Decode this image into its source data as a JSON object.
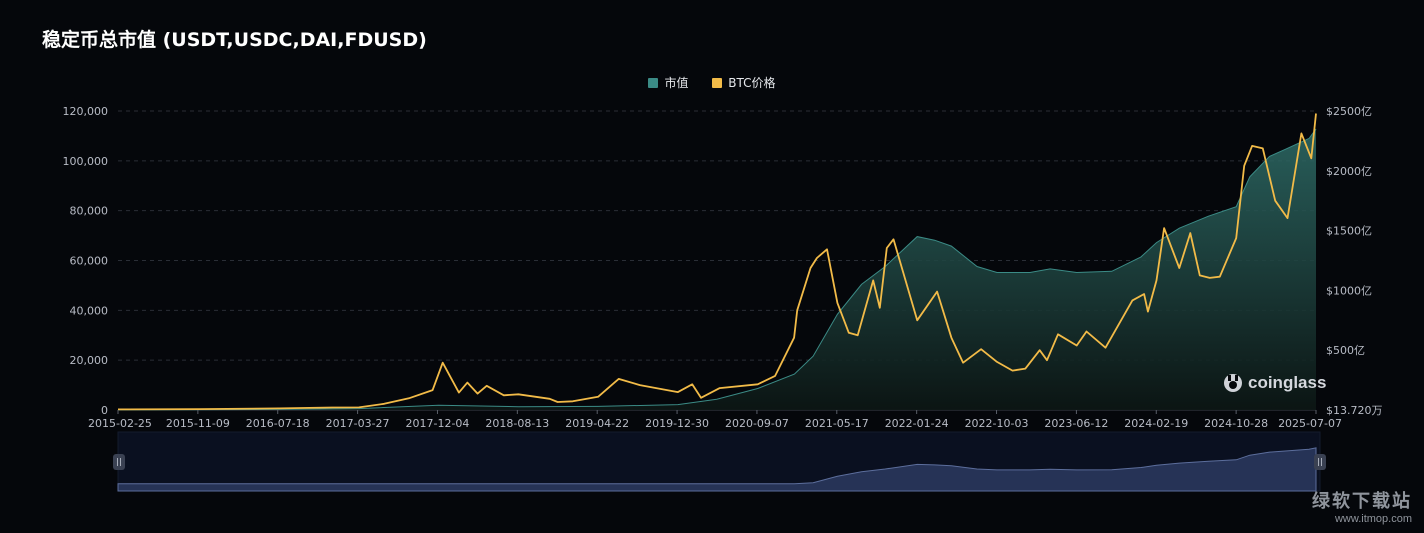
{
  "title": "稳定币总市值 (USDT,USDC,DAI,FDUSD)",
  "legend": [
    {
      "label": "市值",
      "color": "#3b8b86"
    },
    {
      "label": "BTC价格",
      "color": "#f2bb48"
    }
  ],
  "watermark": {
    "logo": "coinglass",
    "site_name": "绿软下载站",
    "site_url": "www.itmop.com"
  },
  "chart_data": {
    "type": "area",
    "x_ticks": [
      "2015-02-25",
      "2015-11-09",
      "2016-07-18",
      "2017-03-27",
      "2017-12-04",
      "2018-08-13",
      "2019-04-22",
      "2019-12-30",
      "2020-09-07",
      "2021-05-17",
      "2022-01-24",
      "2022-10-03",
      "2023-06-12",
      "2024-02-19",
      "2024-10-28",
      "2025-07-07"
    ],
    "left_axis": {
      "ticks": [
        "0",
        "20,000",
        "40,000",
        "60,000",
        "80,000",
        "100,000",
        "120,000"
      ],
      "range": [
        0,
        120000
      ]
    },
    "right_axis": {
      "ticks": [
        "$13.720万",
        "$500亿",
        "$1000亿",
        "$1500亿",
        "$2000亿",
        "$2500亿"
      ],
      "range_yi": [
        0,
        2500
      ]
    },
    "grid": true,
    "legend_position": "top-center",
    "series": [
      {
        "name": "市值",
        "axis": "right",
        "unit": "亿美元",
        "color": "#3b8b86",
        "points": [
          [
            "2015-02-25",
            1
          ],
          [
            "2016-07-18",
            5
          ],
          [
            "2017-03-27",
            12
          ],
          [
            "2017-12-04",
            40
          ],
          [
            "2018-08-13",
            28
          ],
          [
            "2019-04-22",
            30
          ],
          [
            "2019-12-30",
            45
          ],
          [
            "2020-05-01",
            90
          ],
          [
            "2020-09-07",
            180
          ],
          [
            "2021-01-01",
            300
          ],
          [
            "2021-03-01",
            450
          ],
          [
            "2021-05-17",
            800
          ],
          [
            "2021-08-01",
            1050
          ],
          [
            "2021-10-15",
            1200
          ],
          [
            "2022-01-24",
            1450
          ],
          [
            "2022-03-20",
            1420
          ],
          [
            "2022-05-12",
            1370
          ],
          [
            "2022-08-01",
            1200
          ],
          [
            "2022-10-03",
            1150
          ],
          [
            "2023-01-15",
            1150
          ],
          [
            "2023-03-20",
            1180
          ],
          [
            "2023-06-12",
            1150
          ],
          [
            "2023-10-01",
            1160
          ],
          [
            "2024-01-01",
            1280
          ],
          [
            "2024-02-19",
            1400
          ],
          [
            "2024-05-01",
            1520
          ],
          [
            "2024-08-01",
            1620
          ],
          [
            "2024-10-28",
            1700
          ],
          [
            "2024-12-10",
            1950
          ],
          [
            "2025-02-10",
            2120
          ],
          [
            "2025-04-01",
            2180
          ],
          [
            "2025-06-15",
            2270
          ],
          [
            "2025-07-07",
            2350
          ]
        ]
      },
      {
        "name": "BTC价格",
        "axis": "left",
        "unit": "USD",
        "color": "#f2bb48",
        "points": [
          [
            "2015-02-25",
            250
          ],
          [
            "2015-11-09",
            380
          ],
          [
            "2016-07-18",
            660
          ],
          [
            "2017-01-01",
            1000
          ],
          [
            "2017-03-27",
            1050
          ],
          [
            "2017-06-15",
            2500
          ],
          [
            "2017-09-01",
            4700
          ],
          [
            "2017-11-15",
            8000
          ],
          [
            "2017-12-17",
            19000
          ],
          [
            "2018-02-06",
            7000
          ],
          [
            "2018-03-05",
            11000
          ],
          [
            "2018-04-06",
            6600
          ],
          [
            "2018-05-05",
            9700
          ],
          [
            "2018-06-28",
            5900
          ],
          [
            "2018-08-13",
            6300
          ],
          [
            "2018-11-20",
            4500
          ],
          [
            "2018-12-15",
            3200
          ],
          [
            "2019-02-01",
            3500
          ],
          [
            "2019-04-22",
            5300
          ],
          [
            "2019-06-26",
            12500
          ],
          [
            "2019-09-01",
            10000
          ],
          [
            "2019-12-30",
            7200
          ],
          [
            "2020-02-13",
            10300
          ],
          [
            "2020-03-12",
            4900
          ],
          [
            "2020-05-10",
            8800
          ],
          [
            "2020-09-07",
            10300
          ],
          [
            "2020-11-01",
            13700
          ],
          [
            "2020-12-31",
            29000
          ],
          [
            "2021-01-10",
            40000
          ],
          [
            "2021-02-21",
            57000
          ],
          [
            "2021-03-13",
            61000
          ],
          [
            "2021-04-14",
            64500
          ],
          [
            "2021-05-17",
            43000
          ],
          [
            "2021-06-22",
            31000
          ],
          [
            "2021-07-20",
            30000
          ],
          [
            "2021-09-07",
            52000
          ],
          [
            "2021-09-28",
            41000
          ],
          [
            "2021-10-20",
            65000
          ],
          [
            "2021-11-10",
            68500
          ],
          [
            "2022-01-24",
            36000
          ],
          [
            "2022-03-28",
            47500
          ],
          [
            "2022-05-12",
            29000
          ],
          [
            "2022-06-18",
            19000
          ],
          [
            "2022-08-14",
            24400
          ],
          [
            "2022-10-03",
            19300
          ],
          [
            "2022-11-21",
            15800
          ],
          [
            "2023-01-01",
            16600
          ],
          [
            "2023-02-15",
            24000
          ],
          [
            "2023-03-10",
            20000
          ],
          [
            "2023-04-14",
            30400
          ],
          [
            "2023-06-12",
            25900
          ],
          [
            "2023-07-13",
            31500
          ],
          [
            "2023-09-11",
            25000
          ],
          [
            "2023-12-05",
            44000
          ],
          [
            "2024-01-11",
            46500
          ],
          [
            "2024-01-23",
            39500
          ],
          [
            "2024-02-19",
            52000
          ],
          [
            "2024-03-14",
            73000
          ],
          [
            "2024-05-01",
            57000
          ],
          [
            "2024-06-05",
            71000
          ],
          [
            "2024-07-05",
            54000
          ],
          [
            "2024-08-05",
            53000
          ],
          [
            "2024-09-06",
            53500
          ],
          [
            "2024-10-28",
            69000
          ],
          [
            "2024-11-22",
            98000
          ],
          [
            "2024-12-17",
            106000
          ],
          [
            "2025-01-20",
            105000
          ],
          [
            "2025-02-28",
            84000
          ],
          [
            "2025-04-08",
            77000
          ],
          [
            "2025-05-22",
            111000
          ],
          [
            "2025-06-22",
            101000
          ],
          [
            "2025-07-07",
            119000
          ]
        ]
      }
    ],
    "data_zoom": {
      "start": "2015-02-25",
      "end": "2025-07-07"
    }
  }
}
